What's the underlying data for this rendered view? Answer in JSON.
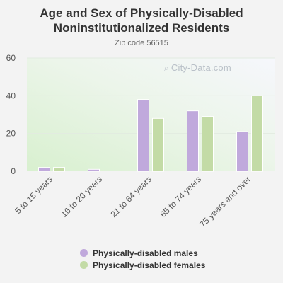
{
  "chart_data": {
    "type": "bar",
    "title": "Age and Sex of Physically-Disabled Noninstitutionalized Residents",
    "subtitle": "Zip code 56515",
    "categories": [
      "5 to 15 years",
      "16 to 20 years",
      "21 to 64 years",
      "65 to 74 years",
      "75 years and over"
    ],
    "series": [
      {
        "name": "Physically-disabled males",
        "values": [
          2,
          1,
          38,
          32,
          21
        ],
        "color": "#c0a9dc"
      },
      {
        "name": "Physically-disabled females",
        "values": [
          2,
          0,
          28,
          29,
          40
        ],
        "color": "#c3dba6"
      }
    ],
    "ylim": [
      0,
      60
    ],
    "yticks": [
      "0",
      "20",
      "40",
      "60"
    ],
    "grid": true,
    "legend_position": "bottom"
  },
  "watermark": {
    "text": "City-Data.com",
    "icon": "search-icon"
  }
}
